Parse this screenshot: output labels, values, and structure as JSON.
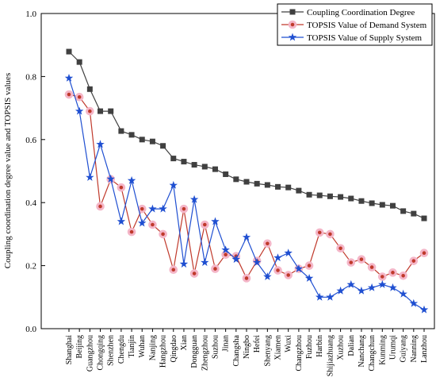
{
  "chart_data": {
    "type": "line",
    "y_label": "Coupling coordination degree value and TOPSIS values",
    "categories": [
      "Shanghai",
      "Beijing",
      "Guangzhou",
      "Chongqing",
      "Shenzhen",
      "Chengdu",
      "Tianjin",
      "Wuhan",
      "Nanjing",
      "Hangzhou",
      "Qingdao",
      "Xian",
      "Dongguan",
      "Zhengzhou",
      "Suzhou",
      "Jinan",
      "Changsha",
      "Ningbo",
      "Hefei",
      "Shenyang",
      "Xiamen",
      "Wuxi",
      "Changzhou",
      "Fuzhou",
      "Harbin",
      "Shijiazhuang",
      "Xuzhou",
      "Dalian",
      "Nanchang",
      "Changchun",
      "Kunming",
      "Urumqi",
      "Guiyang",
      "Nanning",
      "Lanzhou"
    ],
    "series": [
      {
        "name": "Coupling Coordination Degree",
        "color": "#404040",
        "marker": "square",
        "values": [
          0.879,
          0.846,
          0.76,
          0.69,
          0.69,
          0.627,
          0.615,
          0.6,
          0.594,
          0.58,
          0.54,
          0.53,
          0.52,
          0.514,
          0.506,
          0.49,
          0.474,
          0.466,
          0.46,
          0.456,
          0.45,
          0.448,
          0.438,
          0.425,
          0.423,
          0.42,
          0.418,
          0.413,
          0.405,
          0.398,
          0.393,
          0.39,
          0.373,
          0.365,
          0.35
        ]
      },
      {
        "name": "TOPSIS Value of Demand System",
        "color": "#c0392b",
        "marker": "circle",
        "values": [
          0.743,
          0.735,
          0.69,
          0.388,
          0.474,
          0.448,
          0.307,
          0.38,
          0.33,
          0.3,
          0.187,
          0.38,
          0.175,
          0.33,
          0.19,
          0.235,
          0.23,
          0.16,
          0.215,
          0.27,
          0.185,
          0.17,
          0.19,
          0.2,
          0.305,
          0.3,
          0.255,
          0.21,
          0.22,
          0.195,
          0.165,
          0.178,
          0.168,
          0.215,
          0.24
        ]
      },
      {
        "name": "TOPSIS Value of Supply System",
        "color": "#1f4fd1",
        "marker": "star",
        "values": [
          0.795,
          0.69,
          0.48,
          0.585,
          0.475,
          0.34,
          0.47,
          0.335,
          0.38,
          0.38,
          0.455,
          0.205,
          0.41,
          0.21,
          0.34,
          0.25,
          0.22,
          0.29,
          0.21,
          0.165,
          0.225,
          0.24,
          0.19,
          0.16,
          0.1,
          0.1,
          0.12,
          0.14,
          0.12,
          0.13,
          0.14,
          0.13,
          0.11,
          0.08,
          0.06
        ]
      }
    ],
    "ylim": [
      0,
      1.0
    ],
    "yticks": [
      {
        "value": 0,
        "label": "0.0"
      },
      {
        "value": 0.2,
        "label": "0.2"
      },
      {
        "value": 0.4,
        "label": "0.4"
      },
      {
        "value": 0.6,
        "label": "0.6"
      },
      {
        "value": 0.8,
        "label": "0.8"
      },
      {
        "value": 1.0,
        "label": "1.0"
      }
    ],
    "legend": "upper right"
  }
}
